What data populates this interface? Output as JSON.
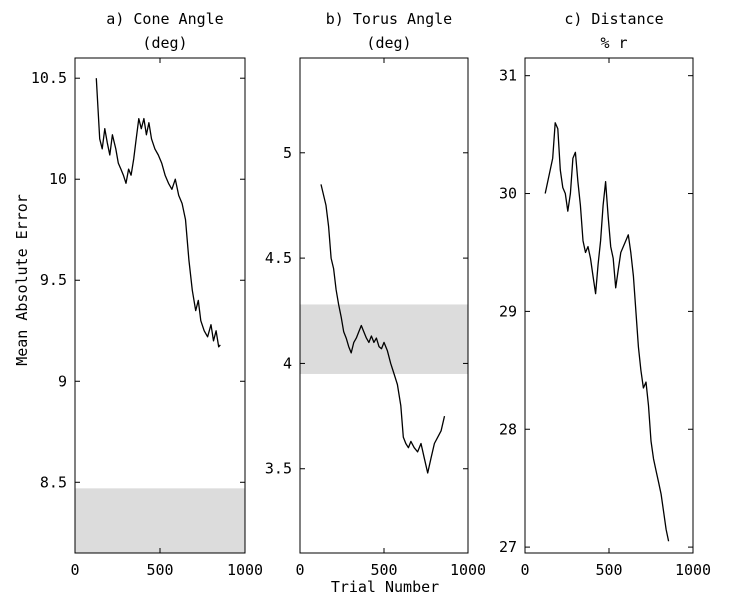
{
  "figure": {
    "ylabel": "Mean Absolute Error",
    "xlabel": "Trial Number"
  },
  "chart_data": [
    {
      "type": "line",
      "title_line1": "a) Cone Angle",
      "title_line2": "(deg)",
      "xlim": [
        0,
        1000
      ],
      "ylim": [
        8.15,
        10.6
      ],
      "xticks": [
        0,
        500,
        1000
      ],
      "yticks": [
        8.5,
        9,
        9.5,
        10,
        10.5
      ],
      "band": [
        8.15,
        8.47
      ],
      "band_color": "#dcdcdc",
      "series": [
        {
          "x": [
            125,
            135,
            145,
            160,
            175,
            190,
            205,
            220,
            240,
            255,
            270,
            285,
            300,
            315,
            330,
            345,
            360,
            375,
            390,
            405,
            420,
            435,
            450,
            470,
            490,
            510,
            530,
            550,
            570,
            590,
            610,
            630,
            650,
            670,
            690,
            710,
            725,
            740,
            760,
            780,
            800,
            815,
            830,
            845,
            855
          ],
          "y": [
            10.5,
            10.35,
            10.2,
            10.15,
            10.25,
            10.18,
            10.12,
            10.22,
            10.15,
            10.08,
            10.05,
            10.02,
            9.98,
            10.05,
            10.02,
            10.1,
            10.2,
            10.3,
            10.25,
            10.3,
            10.22,
            10.28,
            10.2,
            10.15,
            10.12,
            10.08,
            10.02,
            9.98,
            9.95,
            10.0,
            9.92,
            9.88,
            9.8,
            9.6,
            9.45,
            9.35,
            9.4,
            9.3,
            9.25,
            9.22,
            9.28,
            9.2,
            9.25,
            9.17,
            9.18
          ]
        }
      ]
    },
    {
      "type": "line",
      "title_line1": "b) Torus Angle",
      "title_line2": "(deg)",
      "xlim": [
        0,
        1000
      ],
      "ylim": [
        3.1,
        5.45
      ],
      "xticks": [
        0,
        500,
        1000
      ],
      "yticks": [
        3.5,
        4,
        4.5,
        5
      ],
      "band": [
        3.95,
        4.28
      ],
      "band_color": "#dcdcdc",
      "series": [
        {
          "x": [
            125,
            140,
            155,
            170,
            185,
            200,
            215,
            230,
            245,
            260,
            275,
            290,
            305,
            320,
            335,
            350,
            365,
            380,
            395,
            410,
            425,
            440,
            455,
            470,
            485,
            500,
            520,
            540,
            560,
            580,
            600,
            615,
            630,
            645,
            660,
            680,
            700,
            720,
            740,
            760,
            780,
            800,
            820,
            840,
            860
          ],
          "y": [
            4.85,
            4.8,
            4.75,
            4.65,
            4.5,
            4.45,
            4.35,
            4.28,
            4.22,
            4.15,
            4.12,
            4.08,
            4.05,
            4.1,
            4.12,
            4.15,
            4.18,
            4.15,
            4.12,
            4.1,
            4.13,
            4.1,
            4.12,
            4.08,
            4.07,
            4.1,
            4.06,
            4.0,
            3.95,
            3.9,
            3.8,
            3.65,
            3.62,
            3.6,
            3.63,
            3.6,
            3.58,
            3.62,
            3.55,
            3.48,
            3.55,
            3.62,
            3.65,
            3.68,
            3.75
          ]
        }
      ]
    },
    {
      "type": "line",
      "title_line1": "c) Distance",
      "title_line2": "% r",
      "xlim": [
        0,
        1000
      ],
      "ylim": [
        26.95,
        31.15
      ],
      "xticks": [
        0,
        500,
        1000
      ],
      "yticks": [
        27,
        28,
        29,
        30,
        31
      ],
      "series": [
        {
          "x": [
            120,
            135,
            150,
            165,
            180,
            195,
            210,
            225,
            240,
            255,
            270,
            285,
            300,
            315,
            330,
            345,
            360,
            375,
            390,
            405,
            420,
            435,
            450,
            465,
            480,
            495,
            510,
            525,
            540,
            555,
            570,
            585,
            600,
            615,
            630,
            645,
            660,
            675,
            690,
            705,
            720,
            735,
            750,
            765,
            780,
            795,
            810,
            825,
            840,
            855
          ],
          "y": [
            30.0,
            30.1,
            30.2,
            30.3,
            30.6,
            30.55,
            30.2,
            30.05,
            30.0,
            29.85,
            30.0,
            30.3,
            30.35,
            30.1,
            29.9,
            29.6,
            29.5,
            29.55,
            29.45,
            29.3,
            29.15,
            29.4,
            29.6,
            29.9,
            30.1,
            29.8,
            29.55,
            29.45,
            29.2,
            29.35,
            29.5,
            29.55,
            29.6,
            29.65,
            29.5,
            29.3,
            29.0,
            28.7,
            28.5,
            28.35,
            28.4,
            28.2,
            27.9,
            27.75,
            27.65,
            27.55,
            27.45,
            27.3,
            27.15,
            27.05
          ]
        }
      ]
    }
  ]
}
